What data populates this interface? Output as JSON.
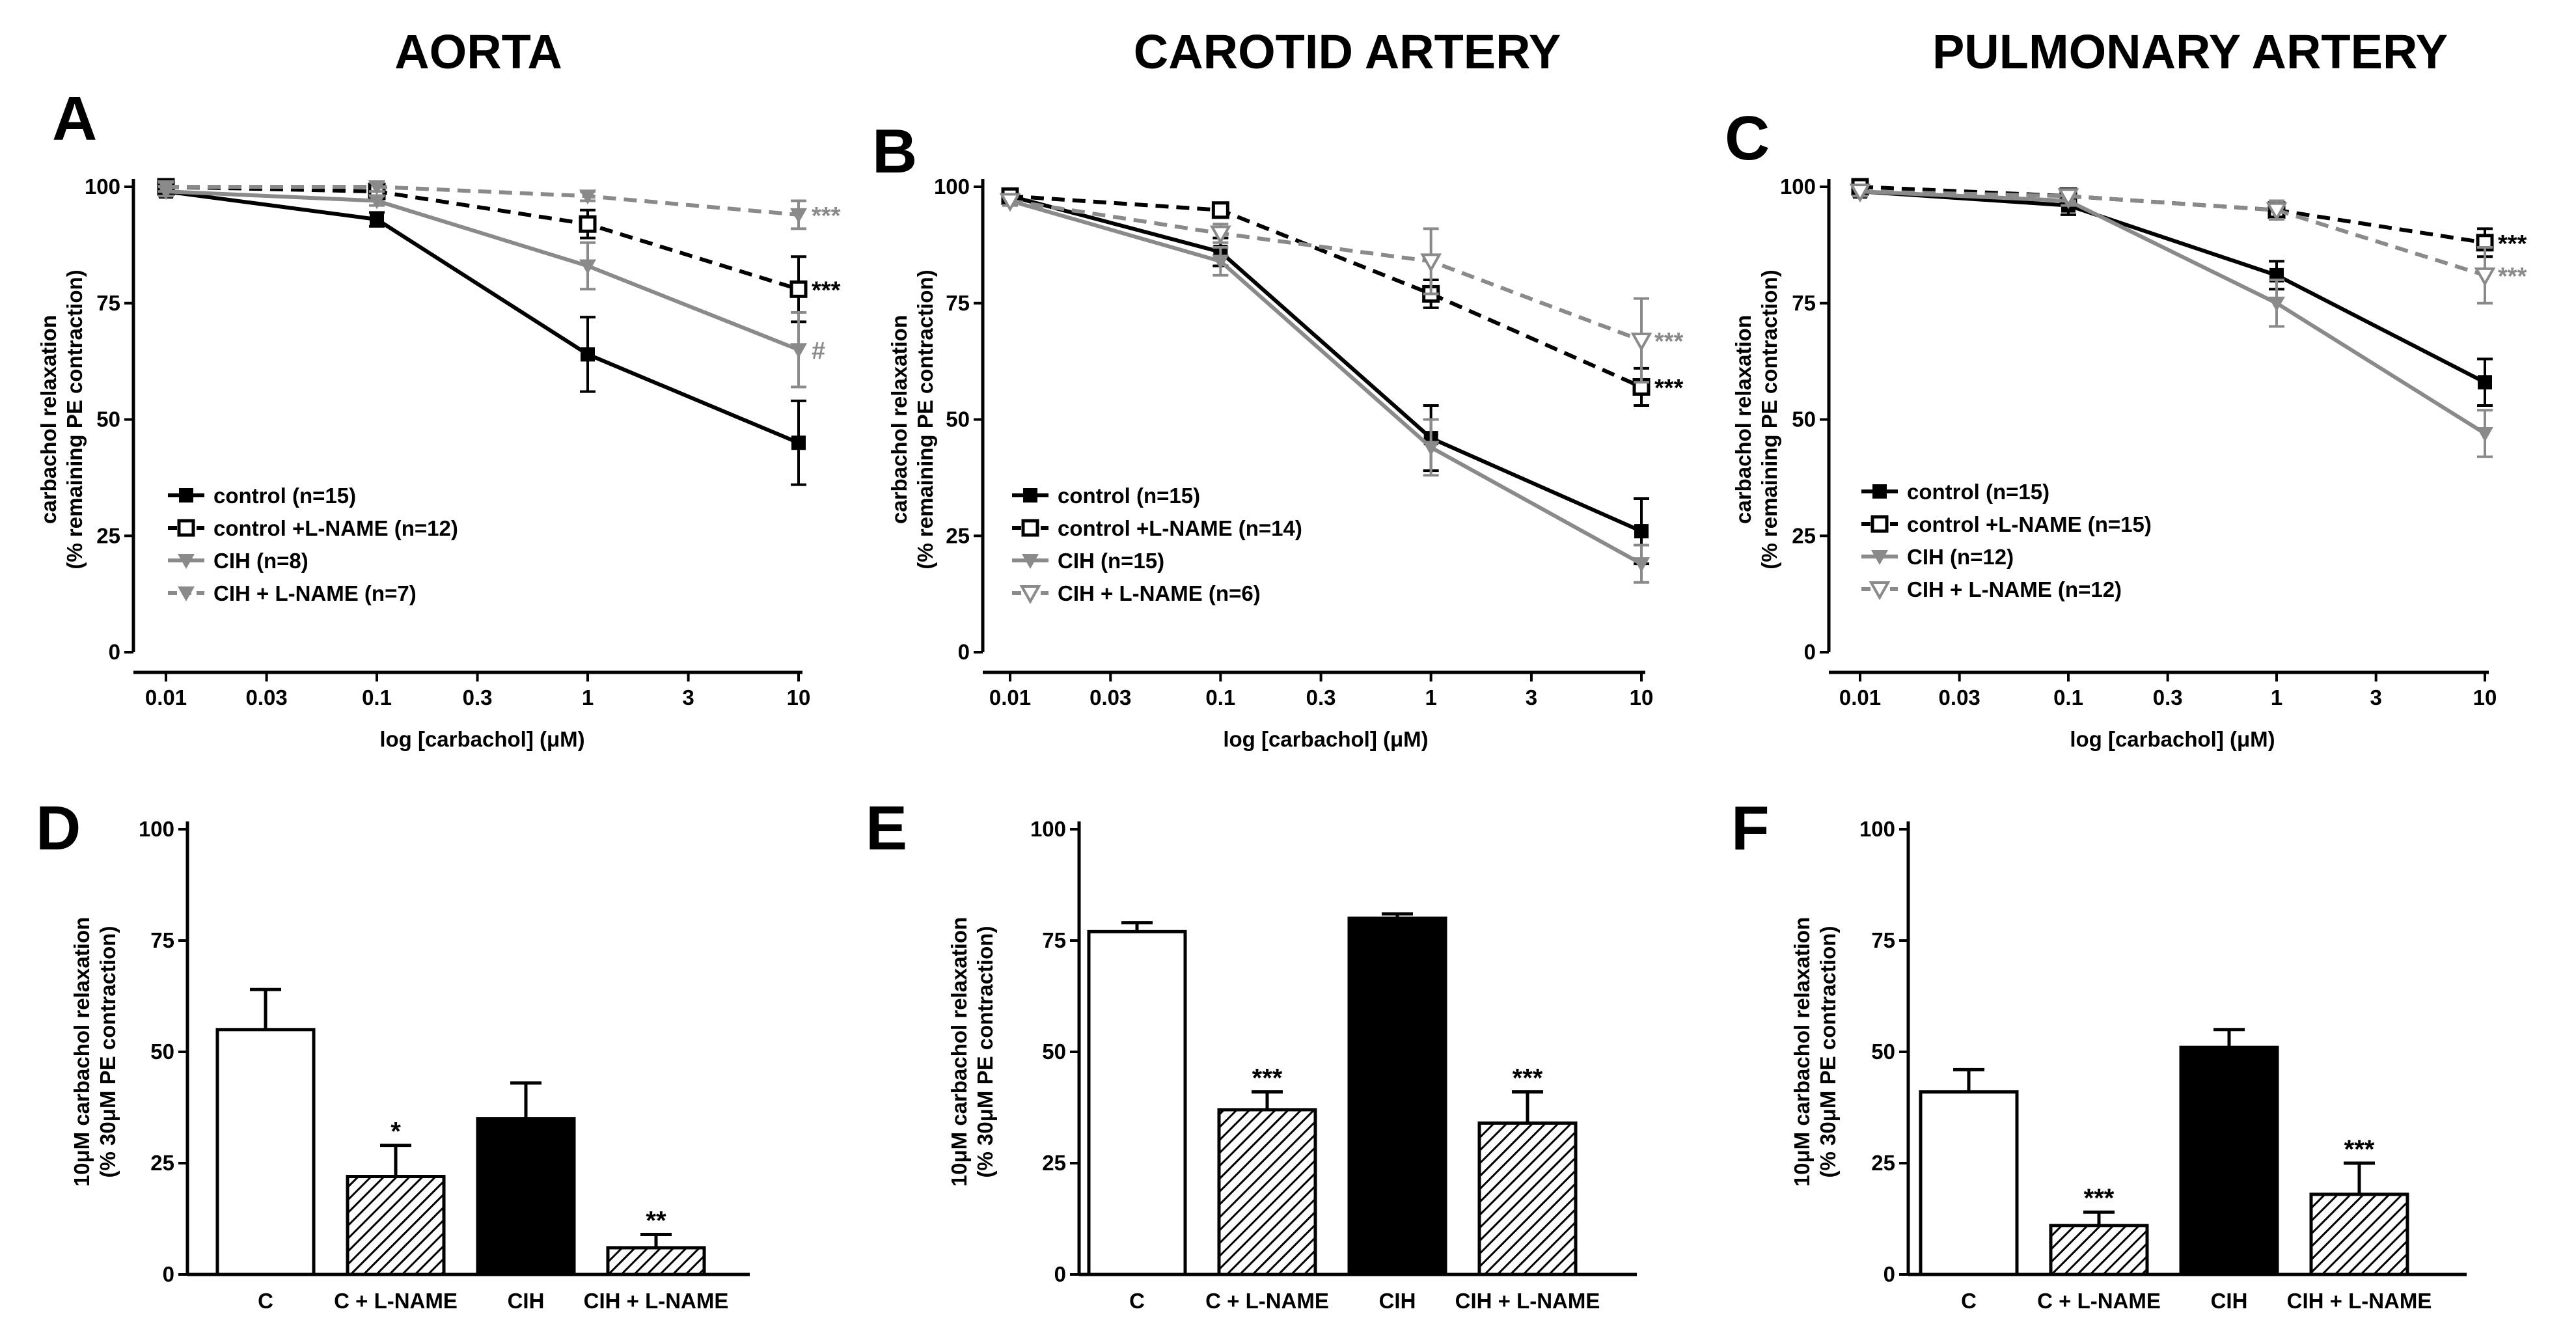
{
  "colors": {
    "black": "#000000",
    "gray": "#8a8a8a",
    "white": "#ffffff"
  },
  "chart_data": [
    {
      "type": "line",
      "panel": "A",
      "title": "AORTA",
      "xlabel": "log [carbachol] (μM)",
      "ylabel": [
        "carbachol relaxation",
        "(% remaining PE contraction)"
      ],
      "xscale": "log",
      "x": [
        0.01,
        0.1,
        1,
        10
      ],
      "x_tick_labels": [
        "0.01",
        "0.03",
        "0.1",
        "0.3",
        "1",
        "3",
        "10"
      ],
      "x_tick_values": [
        0.01,
        0.03,
        0.1,
        0.3,
        1,
        3,
        10
      ],
      "y_ticks": [
        0,
        25,
        50,
        75,
        100
      ],
      "ylim": [
        0,
        100
      ],
      "legend_position": "bottom-left",
      "series": [
        {
          "name": "control (n=15)",
          "color": "#000000",
          "dash": "solid",
          "marker": "square-filled",
          "values": [
            99,
            93,
            64,
            45
          ],
          "errors": [
            1,
            1.5,
            8,
            9
          ],
          "annotation": ""
        },
        {
          "name": "control +L-NAME (n=12)",
          "color": "#000000",
          "dash": "dashed",
          "marker": "square-open",
          "values": [
            100,
            99,
            92,
            78
          ],
          "errors": [
            1,
            1,
            3,
            7
          ],
          "annotation": "***"
        },
        {
          "name": "CIH (n=8)",
          "color": "#8a8a8a",
          "dash": "solid",
          "marker": "triangle-filled",
          "values": [
            99,
            97,
            83,
            65
          ],
          "errors": [
            1,
            1,
            5,
            8
          ],
          "annotation": "#"
        },
        {
          "name": "CIH + L-NAME (n=7)",
          "color": "#8a8a8a",
          "dash": "dashed",
          "marker": "triangle-filled",
          "values": [
            100,
            100,
            98,
            94
          ],
          "errors": [
            1,
            1,
            1,
            3
          ],
          "annotation": "***"
        }
      ]
    },
    {
      "type": "line",
      "panel": "B",
      "title": "CAROTID ARTERY",
      "xlabel": "log [carbachol] (μM)",
      "ylabel": [
        "carbachol relaxation",
        "(% remaining PE contraction)"
      ],
      "xscale": "log",
      "x": [
        0.01,
        0.1,
        1,
        10
      ],
      "x_tick_labels": [
        "0.01",
        "0.03",
        "0.1",
        "0.3",
        "1",
        "3",
        "10"
      ],
      "x_tick_values": [
        0.01,
        0.03,
        0.1,
        0.3,
        1,
        3,
        10
      ],
      "y_ticks": [
        0,
        25,
        50,
        75,
        100
      ],
      "ylim": [
        0,
        100
      ],
      "legend_position": "bottom-left",
      "series": [
        {
          "name": "control (n=15)",
          "color": "#000000",
          "dash": "solid",
          "marker": "square-filled",
          "values": [
            98,
            86,
            46,
            26
          ],
          "errors": [
            1,
            3,
            7,
            7
          ],
          "annotation": ""
        },
        {
          "name": "control +L-NAME (n=14)",
          "color": "#000000",
          "dash": "dashed",
          "marker": "square-open",
          "values": [
            98,
            95,
            77,
            57
          ],
          "errors": [
            1,
            1,
            3,
            4
          ],
          "annotation": "***"
        },
        {
          "name": "CIH (n=15)",
          "color": "#8a8a8a",
          "dash": "solid",
          "marker": "triangle-filled",
          "values": [
            97,
            84,
            44,
            19
          ],
          "errors": [
            1,
            3,
            6,
            4
          ],
          "annotation": ""
        },
        {
          "name": "CIH + L-NAME (n=6)",
          "color": "#8a8a8a",
          "dash": "dashed",
          "marker": "triangle-open",
          "values": [
            97,
            90,
            84,
            67
          ],
          "errors": [
            1,
            2,
            7,
            9
          ],
          "annotation": "***"
        }
      ]
    },
    {
      "type": "line",
      "panel": "C",
      "title": "PULMONARY ARTERY",
      "xlabel": "log [carbachol] (μM)",
      "ylabel": [
        "carbachol relaxation",
        "(% remaining PE contraction)"
      ],
      "xscale": "log",
      "x": [
        0.01,
        0.1,
        1,
        10
      ],
      "x_tick_labels": [
        "0.01",
        "0.03",
        "0.1",
        "0.3",
        "1",
        "3",
        "10"
      ],
      "x_tick_values": [
        0.01,
        0.03,
        0.1,
        0.3,
        1,
        3,
        10
      ],
      "y_ticks": [
        0,
        25,
        50,
        75,
        100
      ],
      "ylim": [
        0,
        100
      ],
      "legend_position": "bottom-left",
      "series": [
        {
          "name": "control (n=15)",
          "color": "#000000",
          "dash": "solid",
          "marker": "square-filled",
          "values": [
            99,
            96,
            81,
            58
          ],
          "errors": [
            1,
            2,
            3,
            5
          ],
          "annotation": ""
        },
        {
          "name": "control +L-NAME (n=15)",
          "color": "#000000",
          "dash": "dashed",
          "marker": "square-open",
          "values": [
            100,
            98,
            95,
            88
          ],
          "errors": [
            1,
            1,
            2,
            3
          ],
          "annotation": "***"
        },
        {
          "name": "CIH (n=12)",
          "color": "#8a8a8a",
          "dash": "solid",
          "marker": "triangle-filled",
          "values": [
            99,
            97,
            75,
            47
          ],
          "errors": [
            1,
            1,
            5,
            5
          ],
          "annotation": ""
        },
        {
          "name": "CIH + L-NAME (n=12)",
          "color": "#8a8a8a",
          "dash": "dashed",
          "marker": "triangle-open",
          "values": [
            99,
            98,
            95,
            81
          ],
          "errors": [
            1,
            1,
            2,
            6
          ],
          "annotation": "***"
        }
      ]
    },
    {
      "type": "bar",
      "panel": "D",
      "ylabel": [
        "10μM carbachol relaxation",
        "(% 30μM PE contraction)"
      ],
      "categories": [
        "C",
        "C + L-NAME",
        "CIH",
        "CIH + L-NAME"
      ],
      "values": [
        55,
        22,
        35,
        6
      ],
      "errors": [
        9,
        7,
        8,
        3
      ],
      "fills": [
        "white",
        "hatch",
        "black",
        "hatch"
      ],
      "annotations": [
        "",
        "*",
        "",
        "**"
      ],
      "y_ticks": [
        0,
        25,
        50,
        75,
        100
      ],
      "ylim": [
        0,
        100
      ]
    },
    {
      "type": "bar",
      "panel": "E",
      "ylabel": [
        "10μM carbachol relaxation",
        "(% 30μM PE contraction)"
      ],
      "categories": [
        "C",
        "C + L-NAME",
        "CIH",
        "CIH + L-NAME"
      ],
      "values": [
        77,
        37,
        80,
        34
      ],
      "errors": [
        2,
        4,
        1,
        7
      ],
      "fills": [
        "white",
        "hatch",
        "black",
        "hatch"
      ],
      "annotations": [
        "",
        "***",
        "",
        "***"
      ],
      "y_ticks": [
        0,
        25,
        50,
        75,
        100
      ],
      "ylim": [
        0,
        100
      ]
    },
    {
      "type": "bar",
      "panel": "F",
      "ylabel": [
        "10μM carbachol relaxation",
        "(% 30μM PE contraction)"
      ],
      "categories": [
        "C",
        "C + L-NAME",
        "CIH",
        "CIH + L-NAME"
      ],
      "values": [
        41,
        11,
        51,
        18
      ],
      "errors": [
        5,
        3,
        4,
        7
      ],
      "fills": [
        "white",
        "hatch",
        "black",
        "hatch"
      ],
      "annotations": [
        "",
        "***",
        "",
        "***"
      ],
      "y_ticks": [
        0,
        25,
        50,
        75,
        100
      ],
      "ylim": [
        0,
        100
      ]
    }
  ]
}
